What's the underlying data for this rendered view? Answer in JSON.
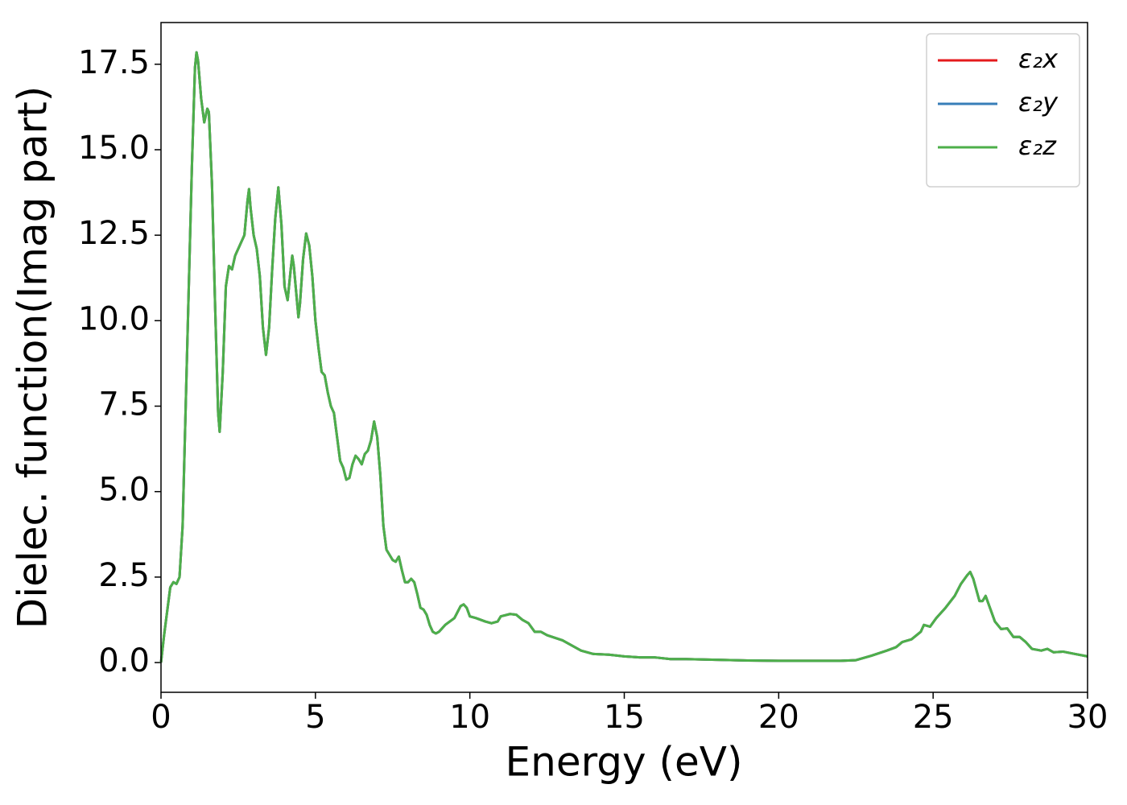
{
  "chart_data": {
    "type": "line",
    "xlabel": "Energy (eV)",
    "ylabel": "Dielec. function(Imag part)",
    "x": [
      0,
      0.1,
      0.3,
      0.4,
      0.5,
      0.6,
      0.7,
      0.8,
      0.9,
      1.0,
      1.1,
      1.15,
      1.2,
      1.3,
      1.4,
      1.5,
      1.55,
      1.65,
      1.75,
      1.85,
      1.9,
      2.0,
      2.1,
      2.2,
      2.3,
      2.4,
      2.6,
      2.7,
      2.8,
      2.85,
      2.9,
      3.0,
      3.1,
      3.2,
      3.3,
      3.4,
      3.5,
      3.6,
      3.7,
      3.8,
      3.9,
      4.0,
      4.1,
      4.2,
      4.25,
      4.3,
      4.4,
      4.45,
      4.5,
      4.6,
      4.7,
      4.8,
      4.9,
      5.0,
      5.1,
      5.2,
      5.3,
      5.4,
      5.5,
      5.6,
      5.7,
      5.8,
      5.9,
      6.0,
      6.1,
      6.2,
      6.3,
      6.4,
      6.5,
      6.6,
      6.7,
      6.8,
      6.9,
      7.0,
      7.1,
      7.2,
      7.3,
      7.4,
      7.5,
      7.6,
      7.7,
      7.8,
      7.9,
      8.0,
      8.1,
      8.2,
      8.3,
      8.4,
      8.5,
      8.6,
      8.7,
      8.8,
      8.9,
      9.0,
      9.2,
      9.5,
      9.7,
      9.8,
      9.9,
      10.0,
      10.2,
      10.5,
      10.7,
      10.9,
      11.0,
      11.3,
      11.5,
      11.7,
      11.9,
      12.1,
      12.3,
      12.5,
      13.0,
      13.3,
      13.6,
      14.0,
      14.5,
      15.0,
      15.5,
      16.0,
      16.5,
      17,
      18,
      19,
      20,
      21,
      22,
      22.5,
      23,
      23.5,
      23.8,
      24.0,
      24.3,
      24.6,
      24.7,
      24.9,
      25.1,
      25.4,
      25.7,
      25.9,
      26.1,
      26.2,
      26.3,
      26.5,
      26.6,
      26.7,
      26.8,
      27.0,
      27.2,
      27.4,
      27.6,
      27.8,
      28.0,
      28.2,
      28.5,
      28.7,
      28.9,
      29.2,
      29.6,
      30
    ],
    "series": [
      {
        "name": "ε₂x",
        "color": "#e41a1c",
        "values": [
          0,
          0.8,
          2.2,
          2.35,
          2.3,
          2.5,
          4.0,
          7.5,
          11.0,
          14.5,
          17.4,
          17.85,
          17.6,
          16.5,
          15.8,
          16.2,
          16.1,
          14.0,
          10.5,
          7.3,
          6.75,
          8.5,
          11.0,
          11.6,
          11.5,
          11.9,
          12.3,
          12.5,
          13.5,
          13.85,
          13.3,
          12.5,
          12.1,
          11.3,
          9.8,
          9.0,
          9.8,
          11.5,
          13.0,
          13.9,
          12.8,
          11.0,
          10.6,
          11.5,
          11.9,
          11.6,
          10.6,
          10.1,
          10.5,
          11.8,
          12.55,
          12.2,
          11.3,
          10.0,
          9.2,
          8.5,
          8.4,
          7.9,
          7.5,
          7.3,
          6.6,
          5.9,
          5.7,
          5.35,
          5.4,
          5.8,
          6.05,
          5.95,
          5.8,
          6.1,
          6.2,
          6.5,
          7.05,
          6.6,
          5.5,
          4.0,
          3.3,
          3.15,
          3.0,
          2.95,
          3.1,
          2.7,
          2.35,
          2.35,
          2.45,
          2.35,
          2.0,
          1.6,
          1.55,
          1.4,
          1.1,
          0.9,
          0.85,
          0.9,
          1.1,
          1.3,
          1.65,
          1.7,
          1.6,
          1.35,
          1.3,
          1.2,
          1.15,
          1.2,
          1.35,
          1.42,
          1.4,
          1.25,
          1.15,
          0.9,
          0.9,
          0.8,
          0.65,
          0.5,
          0.35,
          0.25,
          0.23,
          0.18,
          0.15,
          0.15,
          0.1,
          0.1,
          0.08,
          0.06,
          0.05,
          0.05,
          0.05,
          0.07,
          0.2,
          0.35,
          0.45,
          0.6,
          0.68,
          0.9,
          1.1,
          1.05,
          1.3,
          1.6,
          1.95,
          2.3,
          2.55,
          2.65,
          2.45,
          1.8,
          1.8,
          1.95,
          1.7,
          1.2,
          0.98,
          1.0,
          0.75,
          0.75,
          0.6,
          0.4,
          0.35,
          0.4,
          0.3,
          0.32,
          0.25,
          0.18
        ]
      },
      {
        "name": "ε₂y",
        "color": "#377eb8",
        "values": [
          0,
          0.8,
          2.2,
          2.35,
          2.3,
          2.5,
          4.0,
          7.5,
          11.0,
          14.5,
          17.4,
          17.85,
          17.6,
          16.5,
          15.8,
          16.2,
          16.1,
          14.0,
          10.5,
          7.3,
          6.75,
          8.5,
          11.0,
          11.6,
          11.5,
          11.9,
          12.3,
          12.5,
          13.5,
          13.85,
          13.3,
          12.5,
          12.1,
          11.3,
          9.8,
          9.0,
          9.8,
          11.5,
          13.0,
          13.9,
          12.8,
          11.0,
          10.6,
          11.5,
          11.9,
          11.6,
          10.6,
          10.1,
          10.5,
          11.8,
          12.55,
          12.2,
          11.3,
          10.0,
          9.2,
          8.5,
          8.4,
          7.9,
          7.5,
          7.3,
          6.6,
          5.9,
          5.7,
          5.35,
          5.4,
          5.8,
          6.05,
          5.95,
          5.8,
          6.1,
          6.2,
          6.5,
          7.05,
          6.6,
          5.5,
          4.0,
          3.3,
          3.15,
          3.0,
          2.95,
          3.1,
          2.7,
          2.35,
          2.35,
          2.45,
          2.35,
          2.0,
          1.6,
          1.55,
          1.4,
          1.1,
          0.9,
          0.85,
          0.9,
          1.1,
          1.3,
          1.65,
          1.7,
          1.6,
          1.35,
          1.3,
          1.2,
          1.15,
          1.2,
          1.35,
          1.42,
          1.4,
          1.25,
          1.15,
          0.9,
          0.9,
          0.8,
          0.65,
          0.5,
          0.35,
          0.25,
          0.23,
          0.18,
          0.15,
          0.15,
          0.1,
          0.1,
          0.08,
          0.06,
          0.05,
          0.05,
          0.05,
          0.07,
          0.2,
          0.35,
          0.45,
          0.6,
          0.68,
          0.9,
          1.1,
          1.05,
          1.3,
          1.6,
          1.95,
          2.3,
          2.55,
          2.65,
          2.45,
          1.8,
          1.8,
          1.95,
          1.7,
          1.2,
          0.98,
          1.0,
          0.75,
          0.75,
          0.6,
          0.4,
          0.35,
          0.4,
          0.3,
          0.32,
          0.25,
          0.18
        ]
      },
      {
        "name": "ε₂z",
        "color": "#4daf4a",
        "values": [
          0,
          0.8,
          2.2,
          2.35,
          2.3,
          2.5,
          4.0,
          7.5,
          11.0,
          14.5,
          17.4,
          17.85,
          17.6,
          16.5,
          15.8,
          16.2,
          16.1,
          14.0,
          10.5,
          7.3,
          6.75,
          8.5,
          11.0,
          11.6,
          11.5,
          11.9,
          12.3,
          12.5,
          13.5,
          13.85,
          13.3,
          12.5,
          12.1,
          11.3,
          9.8,
          9.0,
          9.8,
          11.5,
          13.0,
          13.9,
          12.8,
          11.0,
          10.6,
          11.5,
          11.9,
          11.6,
          10.6,
          10.1,
          10.5,
          11.8,
          12.55,
          12.2,
          11.3,
          10.0,
          9.2,
          8.5,
          8.4,
          7.9,
          7.5,
          7.3,
          6.6,
          5.9,
          5.7,
          5.35,
          5.4,
          5.8,
          6.05,
          5.95,
          5.8,
          6.1,
          6.2,
          6.5,
          7.05,
          6.6,
          5.5,
          4.0,
          3.3,
          3.15,
          3.0,
          2.95,
          3.1,
          2.7,
          2.35,
          2.35,
          2.45,
          2.35,
          2.0,
          1.6,
          1.55,
          1.4,
          1.1,
          0.9,
          0.85,
          0.9,
          1.1,
          1.3,
          1.65,
          1.7,
          1.6,
          1.35,
          1.3,
          1.2,
          1.15,
          1.2,
          1.35,
          1.42,
          1.4,
          1.25,
          1.15,
          0.9,
          0.9,
          0.8,
          0.65,
          0.5,
          0.35,
          0.25,
          0.23,
          0.18,
          0.15,
          0.15,
          0.1,
          0.1,
          0.08,
          0.06,
          0.05,
          0.05,
          0.05,
          0.07,
          0.2,
          0.35,
          0.45,
          0.6,
          0.68,
          0.9,
          1.1,
          1.05,
          1.3,
          1.6,
          1.95,
          2.3,
          2.55,
          2.65,
          2.45,
          1.8,
          1.8,
          1.95,
          1.7,
          1.2,
          0.98,
          1.0,
          0.75,
          0.75,
          0.6,
          0.4,
          0.35,
          0.4,
          0.3,
          0.32,
          0.25,
          0.18
        ]
      }
    ],
    "xlim": [
      0,
      30
    ],
    "xticks": [
      0,
      5,
      10,
      15,
      20,
      25,
      30
    ],
    "ylim": [
      -0.87,
      18.72
    ],
    "yticks": [
      {
        "value": 0,
        "label": "0.0"
      },
      2.5,
      {
        "value": 5,
        "label": "5.0"
      },
      7.5,
      {
        "value": 10,
        "label": "10.0"
      },
      12.5,
      {
        "value": 15,
        "label": "15.0"
      },
      17.5
    ],
    "grid": false,
    "legend": "upper right"
  }
}
